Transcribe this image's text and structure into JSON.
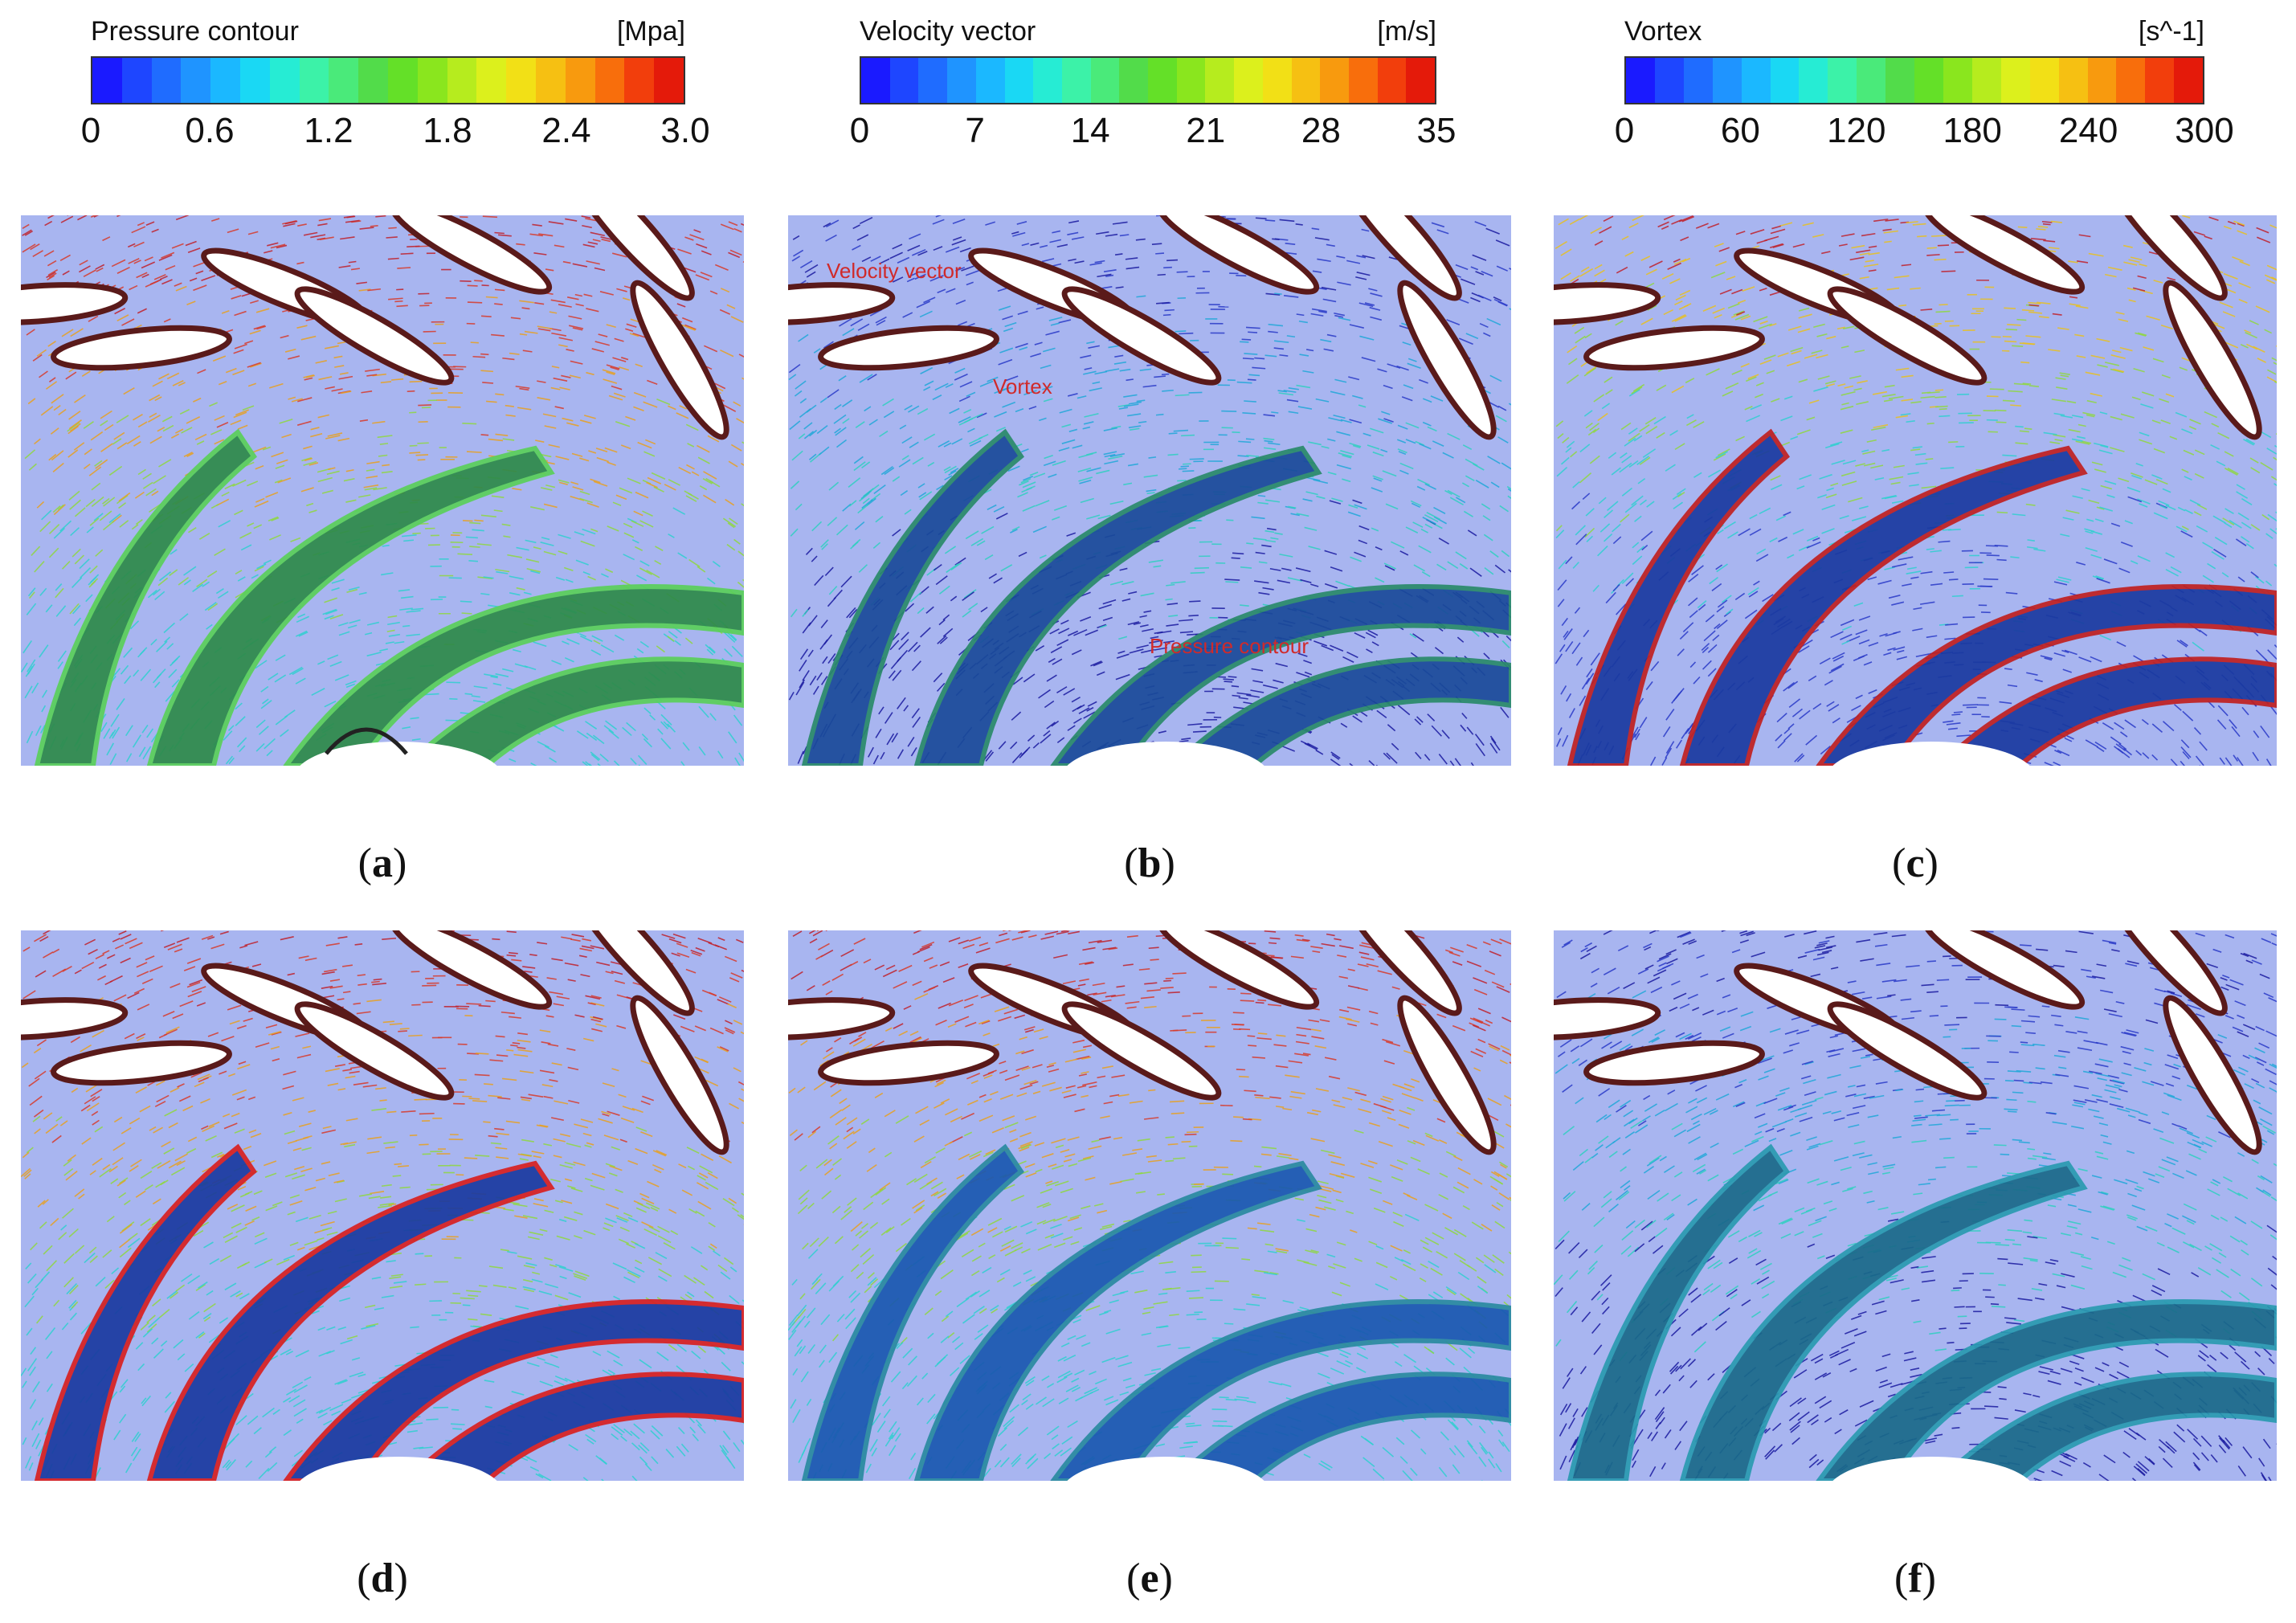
{
  "colors": {
    "rainbow": [
      "#1a1aff",
      "#1e46ff",
      "#1f6cff",
      "#1f94ff",
      "#1bb8ff",
      "#1ad8f4",
      "#26ecd4",
      "#3cf2a8",
      "#4aea7a",
      "#52dc4a",
      "#64e028",
      "#8ae61e",
      "#b6ec1e",
      "#dcf01c",
      "#f2e016",
      "#f6c012",
      "#f89a0e",
      "#f86e0c",
      "#f23e0c",
      "#e41a0a"
    ],
    "panel_background": "#a8b5f0"
  },
  "legends": [
    {
      "title": "Pressure contour",
      "unit": "[Mpa]",
      "ticks": [
        "0",
        "0.6",
        "1.2",
        "1.8",
        "2.4",
        "3.0"
      ]
    },
    {
      "title": "Velocity vector",
      "unit": "[m/s]",
      "ticks": [
        "0",
        "7",
        "14",
        "21",
        "28",
        "35"
      ]
    },
    {
      "title": "Vortex",
      "unit": "[s^-1]",
      "ticks": [
        "0",
        "60",
        "120",
        "180",
        "240",
        "300"
      ]
    }
  ],
  "panels": [
    {
      "label": "a",
      "vector_tone": "red",
      "annotations": []
    },
    {
      "label": "b",
      "vector_tone": "blue",
      "annotations": [
        {
          "text": "Velocity vector"
        },
        {
          "text": "Vortex"
        },
        {
          "text": "Pressure contour"
        }
      ]
    },
    {
      "label": "c",
      "vector_tone": "mixed",
      "annotations": []
    },
    {
      "label": "d",
      "vector_tone": "red",
      "annotations": []
    },
    {
      "label": "e",
      "vector_tone": "red",
      "annotations": []
    },
    {
      "label": "f",
      "vector_tone": "blue",
      "annotations": []
    }
  ]
}
